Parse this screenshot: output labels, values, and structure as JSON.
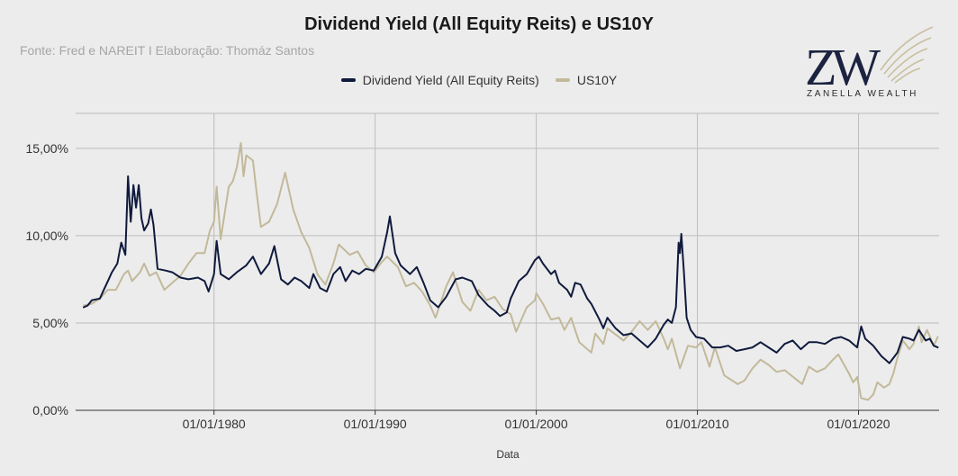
{
  "title": "Dividend Yield (All Equity Reits) e US10Y",
  "subtitle": "Fonte: Fred e NAREIT I Elaboração: Thomáz Santos",
  "logo": {
    "monogram": "ZW",
    "wordmark": "ZANELLA WEALTH",
    "icon": "wing-icon"
  },
  "colors": {
    "dividend": "#0f1a3d",
    "us10y": "#c2b99a",
    "grid": "#bdbdbd",
    "background": "#ececec"
  },
  "chart_data": {
    "type": "line",
    "title": "Dividend Yield (All Equity Reits) e US10Y",
    "subtitle": "Fonte: Fred e NAREIT I Elaboração: Thomáz Santos",
    "xlabel": "Data",
    "ylabel": "",
    "xlim": [
      "1971-06-01",
      "2024-12-31"
    ],
    "ylim": [
      0,
      17
    ],
    "x_ticks": [
      "01/01/1980",
      "01/01/1990",
      "01/01/2000",
      "01/01/2010",
      "01/01/2020"
    ],
    "y_ticks": [
      "0,00%",
      "5,00%",
      "10,00%",
      "15,00%"
    ],
    "y_tick_values": [
      0,
      5,
      10,
      15
    ],
    "grid": "vertical and horizontal at ticks",
    "legend": "top-center",
    "series": [
      {
        "name": "Dividend Yield (All Equity Reits)",
        "color": "#0f1a3d",
        "points": [
          [
            "1971-12-01",
            5.9
          ],
          [
            "1972-03-01",
            6.0
          ],
          [
            "1972-06-01",
            6.3
          ],
          [
            "1972-12-01",
            6.4
          ],
          [
            "1973-03-01",
            6.9
          ],
          [
            "1973-06-01",
            7.4
          ],
          [
            "1973-09-01",
            7.9
          ],
          [
            "1974-01-01",
            8.4
          ],
          [
            "1974-04-01",
            9.6
          ],
          [
            "1974-07-01",
            8.9
          ],
          [
            "1974-09-01",
            13.4
          ],
          [
            "1974-11-01",
            10.8
          ],
          [
            "1975-01-01",
            12.9
          ],
          [
            "1975-03-01",
            11.6
          ],
          [
            "1975-05-01",
            12.9
          ],
          [
            "1975-07-01",
            11.0
          ],
          [
            "1975-09-01",
            10.3
          ],
          [
            "1975-12-01",
            10.7
          ],
          [
            "1976-02-01",
            11.5
          ],
          [
            "1976-04-01",
            10.6
          ],
          [
            "1976-07-01",
            8.1
          ],
          [
            "1977-01-01",
            8.0
          ],
          [
            "1977-06-01",
            7.9
          ],
          [
            "1977-12-01",
            7.6
          ],
          [
            "1978-06-01",
            7.5
          ],
          [
            "1979-01-01",
            7.6
          ],
          [
            "1979-06-01",
            7.4
          ],
          [
            "1979-09-01",
            6.8
          ],
          [
            "1980-01-01",
            7.8
          ],
          [
            "1980-03-01",
            9.7
          ],
          [
            "1980-06-01",
            7.8
          ],
          [
            "1980-12-01",
            7.5
          ],
          [
            "1981-06-01",
            7.9
          ],
          [
            "1982-01-01",
            8.3
          ],
          [
            "1982-06-01",
            8.8
          ],
          [
            "1982-12-01",
            7.8
          ],
          [
            "1983-06-01",
            8.4
          ],
          [
            "1983-10-01",
            9.4
          ],
          [
            "1984-03-01",
            7.5
          ],
          [
            "1984-08-01",
            7.2
          ],
          [
            "1985-01-01",
            7.6
          ],
          [
            "1985-06-01",
            7.4
          ],
          [
            "1985-12-01",
            7.0
          ],
          [
            "1986-03-01",
            7.8
          ],
          [
            "1986-08-01",
            7.0
          ],
          [
            "1987-01-01",
            6.8
          ],
          [
            "1987-06-01",
            7.8
          ],
          [
            "1987-11-01",
            8.2
          ],
          [
            "1988-03-01",
            7.4
          ],
          [
            "1988-08-01",
            8.0
          ],
          [
            "1989-01-01",
            7.8
          ],
          [
            "1989-06-01",
            8.1
          ],
          [
            "1989-12-01",
            8.0
          ],
          [
            "1990-06-01",
            8.8
          ],
          [
            "1990-10-01",
            10.2
          ],
          [
            "1990-12-01",
            11.1
          ],
          [
            "1991-04-01",
            9.0
          ],
          [
            "1991-08-01",
            8.3
          ],
          [
            "1992-03-01",
            7.8
          ],
          [
            "1992-08-01",
            8.2
          ],
          [
            "1993-01-01",
            7.3
          ],
          [
            "1993-06-01",
            6.3
          ],
          [
            "1993-12-01",
            5.9
          ],
          [
            "1994-06-01",
            6.5
          ],
          [
            "1995-01-01",
            7.5
          ],
          [
            "1995-06-01",
            7.6
          ],
          [
            "1996-01-01",
            7.4
          ],
          [
            "1996-06-01",
            6.6
          ],
          [
            "1997-01-01",
            6.0
          ],
          [
            "1997-06-01",
            5.7
          ],
          [
            "1997-10-01",
            5.4
          ],
          [
            "1998-03-01",
            5.6
          ],
          [
            "1998-06-01",
            6.4
          ],
          [
            "1998-12-01",
            7.4
          ],
          [
            "1999-06-01",
            7.8
          ],
          [
            "1999-12-01",
            8.6
          ],
          [
            "2000-03-01",
            8.8
          ],
          [
            "2000-06-01",
            8.4
          ],
          [
            "2000-12-01",
            7.8
          ],
          [
            "2001-03-01",
            8.0
          ],
          [
            "2001-06-01",
            7.3
          ],
          [
            "2001-12-01",
            6.9
          ],
          [
            "2002-03-01",
            6.5
          ],
          [
            "2002-06-01",
            7.3
          ],
          [
            "2002-10-01",
            7.2
          ],
          [
            "2003-03-01",
            6.4
          ],
          [
            "2003-06-01",
            6.1
          ],
          [
            "2003-12-01",
            5.2
          ],
          [
            "2004-03-01",
            4.7
          ],
          [
            "2004-06-01",
            5.3
          ],
          [
            "2004-12-01",
            4.7
          ],
          [
            "2005-06-01",
            4.3
          ],
          [
            "2005-12-01",
            4.4
          ],
          [
            "2006-06-01",
            4.0
          ],
          [
            "2006-12-01",
            3.6
          ],
          [
            "2007-06-01",
            4.1
          ],
          [
            "2007-12-01",
            4.9
          ],
          [
            "2008-03-01",
            5.2
          ],
          [
            "2008-06-01",
            5.0
          ],
          [
            "2008-09-01",
            5.9
          ],
          [
            "2008-11-01",
            9.6
          ],
          [
            "2008-12-01",
            9.0
          ],
          [
            "2009-01-01",
            10.1
          ],
          [
            "2009-03-01",
            7.9
          ],
          [
            "2009-05-01",
            5.3
          ],
          [
            "2009-08-01",
            4.6
          ],
          [
            "2009-12-01",
            4.2
          ],
          [
            "2010-06-01",
            4.1
          ],
          [
            "2010-12-01",
            3.6
          ],
          [
            "2011-06-01",
            3.6
          ],
          [
            "2011-12-01",
            3.7
          ],
          [
            "2012-06-01",
            3.4
          ],
          [
            "2012-12-01",
            3.5
          ],
          [
            "2013-06-01",
            3.6
          ],
          [
            "2013-12-01",
            3.9
          ],
          [
            "2014-06-01",
            3.6
          ],
          [
            "2014-12-01",
            3.3
          ],
          [
            "2015-06-01",
            3.8
          ],
          [
            "2015-12-01",
            4.0
          ],
          [
            "2016-06-01",
            3.5
          ],
          [
            "2016-12-01",
            3.9
          ],
          [
            "2017-06-01",
            3.9
          ],
          [
            "2017-12-01",
            3.8
          ],
          [
            "2018-06-01",
            4.1
          ],
          [
            "2018-12-01",
            4.2
          ],
          [
            "2019-06-01",
            4.0
          ],
          [
            "2019-12-01",
            3.6
          ],
          [
            "2020-03-01",
            4.8
          ],
          [
            "2020-06-01",
            4.1
          ],
          [
            "2020-12-01",
            3.7
          ],
          [
            "2021-06-01",
            3.1
          ],
          [
            "2021-12-01",
            2.7
          ],
          [
            "2022-06-01",
            3.3
          ],
          [
            "2022-10-01",
            4.2
          ],
          [
            "2023-03-01",
            4.1
          ],
          [
            "2023-06-01",
            4.0
          ],
          [
            "2023-10-01",
            4.6
          ],
          [
            "2024-03-01",
            4.0
          ],
          [
            "2024-06-01",
            4.1
          ],
          [
            "2024-09-01",
            3.7
          ],
          [
            "2024-12-01",
            3.6
          ]
        ]
      },
      {
        "name": "US10Y",
        "color": "#c2b99a",
        "points": [
          [
            "1971-12-01",
            6.0
          ],
          [
            "1972-06-01",
            6.1
          ],
          [
            "1972-12-01",
            6.4
          ],
          [
            "1973-06-01",
            6.9
          ],
          [
            "1973-12-01",
            6.9
          ],
          [
            "1974-06-01",
            7.8
          ],
          [
            "1974-09-01",
            8.0
          ],
          [
            "1974-12-01",
            7.4
          ],
          [
            "1975-06-01",
            7.9
          ],
          [
            "1975-09-01",
            8.4
          ],
          [
            "1976-01-01",
            7.7
          ],
          [
            "1976-06-01",
            7.9
          ],
          [
            "1976-12-01",
            6.9
          ],
          [
            "1977-06-01",
            7.3
          ],
          [
            "1977-12-01",
            7.7
          ],
          [
            "1978-06-01",
            8.4
          ],
          [
            "1978-12-01",
            9.0
          ],
          [
            "1979-06-01",
            9.0
          ],
          [
            "1979-10-01",
            10.3
          ],
          [
            "1980-01-01",
            10.8
          ],
          [
            "1980-03-01",
            12.8
          ],
          [
            "1980-06-01",
            9.8
          ],
          [
            "1980-12-01",
            12.8
          ],
          [
            "1981-03-01",
            13.1
          ],
          [
            "1981-06-01",
            13.9
          ],
          [
            "1981-09-01",
            15.3
          ],
          [
            "1981-11-01",
            13.4
          ],
          [
            "1982-01-01",
            14.6
          ],
          [
            "1982-06-01",
            14.3
          ],
          [
            "1982-09-01",
            12.3
          ],
          [
            "1982-12-01",
            10.5
          ],
          [
            "1983-06-01",
            10.8
          ],
          [
            "1983-12-01",
            11.8
          ],
          [
            "1984-06-01",
            13.6
          ],
          [
            "1984-12-01",
            11.5
          ],
          [
            "1985-06-01",
            10.2
          ],
          [
            "1985-12-01",
            9.3
          ],
          [
            "1986-06-01",
            7.8
          ],
          [
            "1986-12-01",
            7.2
          ],
          [
            "1987-06-01",
            8.4
          ],
          [
            "1987-10-01",
            9.5
          ],
          [
            "1988-06-01",
            8.9
          ],
          [
            "1988-12-01",
            9.1
          ],
          [
            "1989-06-01",
            8.3
          ],
          [
            "1989-12-01",
            7.9
          ],
          [
            "1990-06-01",
            8.5
          ],
          [
            "1990-10-01",
            8.8
          ],
          [
            "1991-06-01",
            8.2
          ],
          [
            "1991-12-01",
            7.1
          ],
          [
            "1992-06-01",
            7.3
          ],
          [
            "1992-12-01",
            6.8
          ],
          [
            "1993-06-01",
            6.0
          ],
          [
            "1993-10-01",
            5.3
          ],
          [
            "1994-06-01",
            7.1
          ],
          [
            "1994-11-01",
            7.9
          ],
          [
            "1995-06-01",
            6.2
          ],
          [
            "1995-12-01",
            5.7
          ],
          [
            "1996-06-01",
            6.9
          ],
          [
            "1996-12-01",
            6.3
          ],
          [
            "1997-06-01",
            6.5
          ],
          [
            "1997-12-01",
            5.8
          ],
          [
            "1998-06-01",
            5.5
          ],
          [
            "1998-10-01",
            4.5
          ],
          [
            "1999-06-01",
            5.9
          ],
          [
            "1999-12-01",
            6.3
          ],
          [
            "2000-01-01",
            6.7
          ],
          [
            "2000-06-01",
            6.1
          ],
          [
            "2000-12-01",
            5.2
          ],
          [
            "2001-06-01",
            5.3
          ],
          [
            "2001-10-01",
            4.6
          ],
          [
            "2002-03-01",
            5.3
          ],
          [
            "2002-09-01",
            3.9
          ],
          [
            "2003-06-01",
            3.3
          ],
          [
            "2003-09-01",
            4.4
          ],
          [
            "2004-03-01",
            3.8
          ],
          [
            "2004-06-01",
            4.7
          ],
          [
            "2005-06-01",
            4.0
          ],
          [
            "2005-12-01",
            4.5
          ],
          [
            "2006-06-01",
            5.1
          ],
          [
            "2006-12-01",
            4.6
          ],
          [
            "2007-06-01",
            5.1
          ],
          [
            "2007-12-01",
            4.1
          ],
          [
            "2008-03-01",
            3.5
          ],
          [
            "2008-06-01",
            4.1
          ],
          [
            "2008-12-01",
            2.4
          ],
          [
            "2009-06-01",
            3.7
          ],
          [
            "2009-12-01",
            3.6
          ],
          [
            "2010-04-01",
            3.9
          ],
          [
            "2010-10-01",
            2.5
          ],
          [
            "2011-02-01",
            3.6
          ],
          [
            "2011-09-01",
            2.0
          ],
          [
            "2012-07-01",
            1.5
          ],
          [
            "2012-12-01",
            1.7
          ],
          [
            "2013-06-01",
            2.4
          ],
          [
            "2013-12-01",
            2.9
          ],
          [
            "2014-06-01",
            2.6
          ],
          [
            "2014-12-01",
            2.2
          ],
          [
            "2015-06-01",
            2.3
          ],
          [
            "2016-07-01",
            1.5
          ],
          [
            "2016-12-01",
            2.5
          ],
          [
            "2017-06-01",
            2.2
          ],
          [
            "2017-12-01",
            2.4
          ],
          [
            "2018-06-01",
            2.9
          ],
          [
            "2018-10-01",
            3.2
          ],
          [
            "2019-06-01",
            2.1
          ],
          [
            "2019-09-01",
            1.6
          ],
          [
            "2019-12-01",
            1.9
          ],
          [
            "2020-03-01",
            0.7
          ],
          [
            "2020-08-01",
            0.6
          ],
          [
            "2020-12-01",
            0.9
          ],
          [
            "2021-03-01",
            1.6
          ],
          [
            "2021-08-01",
            1.3
          ],
          [
            "2021-12-01",
            1.5
          ],
          [
            "2022-03-01",
            2.1
          ],
          [
            "2022-06-01",
            3.0
          ],
          [
            "2022-10-01",
            4.0
          ],
          [
            "2023-03-01",
            3.5
          ],
          [
            "2023-06-01",
            3.8
          ],
          [
            "2023-10-01",
            4.8
          ],
          [
            "2023-12-01",
            3.9
          ],
          [
            "2024-04-01",
            4.6
          ],
          [
            "2024-09-01",
            3.7
          ],
          [
            "2024-12-01",
            4.2
          ]
        ]
      }
    ]
  }
}
